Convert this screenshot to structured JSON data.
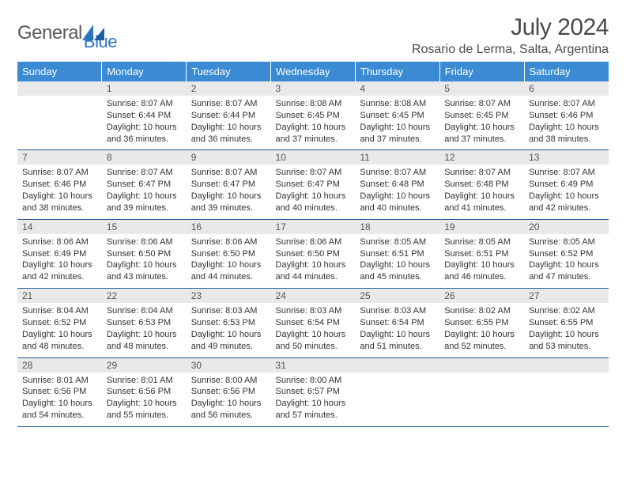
{
  "brand": {
    "part1": "General",
    "part2": "Blue"
  },
  "title": "July 2024",
  "location": "Rosario de Lerma, Salta, Argentina",
  "colors": {
    "header_bg": "#3b8bd4",
    "header_text": "#ffffff",
    "daynum_bg": "#e9e9e9",
    "rule": "#1f5c99",
    "logo_blue": "#2a75c0",
    "text": "#333333"
  },
  "weekdays": [
    "Sunday",
    "Monday",
    "Tuesday",
    "Wednesday",
    "Thursday",
    "Friday",
    "Saturday"
  ],
  "weeks": [
    {
      "nums": [
        "",
        "1",
        "2",
        "3",
        "4",
        "5",
        "6"
      ],
      "cells": [
        {
          "sunrise": "",
          "sunset": "",
          "daylight": ""
        },
        {
          "sunrise": "Sunrise: 8:07 AM",
          "sunset": "Sunset: 6:44 PM",
          "daylight": "Daylight: 10 hours and 36 minutes."
        },
        {
          "sunrise": "Sunrise: 8:07 AM",
          "sunset": "Sunset: 6:44 PM",
          "daylight": "Daylight: 10 hours and 36 minutes."
        },
        {
          "sunrise": "Sunrise: 8:08 AM",
          "sunset": "Sunset: 6:45 PM",
          "daylight": "Daylight: 10 hours and 37 minutes."
        },
        {
          "sunrise": "Sunrise: 8:08 AM",
          "sunset": "Sunset: 6:45 PM",
          "daylight": "Daylight: 10 hours and 37 minutes."
        },
        {
          "sunrise": "Sunrise: 8:07 AM",
          "sunset": "Sunset: 6:45 PM",
          "daylight": "Daylight: 10 hours and 37 minutes."
        },
        {
          "sunrise": "Sunrise: 8:07 AM",
          "sunset": "Sunset: 6:46 PM",
          "daylight": "Daylight: 10 hours and 38 minutes."
        }
      ]
    },
    {
      "nums": [
        "7",
        "8",
        "9",
        "10",
        "11",
        "12",
        "13"
      ],
      "cells": [
        {
          "sunrise": "Sunrise: 8:07 AM",
          "sunset": "Sunset: 6:46 PM",
          "daylight": "Daylight: 10 hours and 38 minutes."
        },
        {
          "sunrise": "Sunrise: 8:07 AM",
          "sunset": "Sunset: 6:47 PM",
          "daylight": "Daylight: 10 hours and 39 minutes."
        },
        {
          "sunrise": "Sunrise: 8:07 AM",
          "sunset": "Sunset: 6:47 PM",
          "daylight": "Daylight: 10 hours and 39 minutes."
        },
        {
          "sunrise": "Sunrise: 8:07 AM",
          "sunset": "Sunset: 6:47 PM",
          "daylight": "Daylight: 10 hours and 40 minutes."
        },
        {
          "sunrise": "Sunrise: 8:07 AM",
          "sunset": "Sunset: 6:48 PM",
          "daylight": "Daylight: 10 hours and 40 minutes."
        },
        {
          "sunrise": "Sunrise: 8:07 AM",
          "sunset": "Sunset: 6:48 PM",
          "daylight": "Daylight: 10 hours and 41 minutes."
        },
        {
          "sunrise": "Sunrise: 8:07 AM",
          "sunset": "Sunset: 6:49 PM",
          "daylight": "Daylight: 10 hours and 42 minutes."
        }
      ]
    },
    {
      "nums": [
        "14",
        "15",
        "16",
        "17",
        "18",
        "19",
        "20"
      ],
      "cells": [
        {
          "sunrise": "Sunrise: 8:06 AM",
          "sunset": "Sunset: 6:49 PM",
          "daylight": "Daylight: 10 hours and 42 minutes."
        },
        {
          "sunrise": "Sunrise: 8:06 AM",
          "sunset": "Sunset: 6:50 PM",
          "daylight": "Daylight: 10 hours and 43 minutes."
        },
        {
          "sunrise": "Sunrise: 8:06 AM",
          "sunset": "Sunset: 6:50 PM",
          "daylight": "Daylight: 10 hours and 44 minutes."
        },
        {
          "sunrise": "Sunrise: 8:06 AM",
          "sunset": "Sunset: 6:50 PM",
          "daylight": "Daylight: 10 hours and 44 minutes."
        },
        {
          "sunrise": "Sunrise: 8:05 AM",
          "sunset": "Sunset: 6:51 PM",
          "daylight": "Daylight: 10 hours and 45 minutes."
        },
        {
          "sunrise": "Sunrise: 8:05 AM",
          "sunset": "Sunset: 6:51 PM",
          "daylight": "Daylight: 10 hours and 46 minutes."
        },
        {
          "sunrise": "Sunrise: 8:05 AM",
          "sunset": "Sunset: 6:52 PM",
          "daylight": "Daylight: 10 hours and 47 minutes."
        }
      ]
    },
    {
      "nums": [
        "21",
        "22",
        "23",
        "24",
        "25",
        "26",
        "27"
      ],
      "cells": [
        {
          "sunrise": "Sunrise: 8:04 AM",
          "sunset": "Sunset: 6:52 PM",
          "daylight": "Daylight: 10 hours and 48 minutes."
        },
        {
          "sunrise": "Sunrise: 8:04 AM",
          "sunset": "Sunset: 6:53 PM",
          "daylight": "Daylight: 10 hours and 48 minutes."
        },
        {
          "sunrise": "Sunrise: 8:03 AM",
          "sunset": "Sunset: 6:53 PM",
          "daylight": "Daylight: 10 hours and 49 minutes."
        },
        {
          "sunrise": "Sunrise: 8:03 AM",
          "sunset": "Sunset: 6:54 PM",
          "daylight": "Daylight: 10 hours and 50 minutes."
        },
        {
          "sunrise": "Sunrise: 8:03 AM",
          "sunset": "Sunset: 6:54 PM",
          "daylight": "Daylight: 10 hours and 51 minutes."
        },
        {
          "sunrise": "Sunrise: 8:02 AM",
          "sunset": "Sunset: 6:55 PM",
          "daylight": "Daylight: 10 hours and 52 minutes."
        },
        {
          "sunrise": "Sunrise: 8:02 AM",
          "sunset": "Sunset: 6:55 PM",
          "daylight": "Daylight: 10 hours and 53 minutes."
        }
      ]
    },
    {
      "nums": [
        "28",
        "29",
        "30",
        "31",
        "",
        "",
        ""
      ],
      "cells": [
        {
          "sunrise": "Sunrise: 8:01 AM",
          "sunset": "Sunset: 6:56 PM",
          "daylight": "Daylight: 10 hours and 54 minutes."
        },
        {
          "sunrise": "Sunrise: 8:01 AM",
          "sunset": "Sunset: 6:56 PM",
          "daylight": "Daylight: 10 hours and 55 minutes."
        },
        {
          "sunrise": "Sunrise: 8:00 AM",
          "sunset": "Sunset: 6:56 PM",
          "daylight": "Daylight: 10 hours and 56 minutes."
        },
        {
          "sunrise": "Sunrise: 8:00 AM",
          "sunset": "Sunset: 6:57 PM",
          "daylight": "Daylight: 10 hours and 57 minutes."
        },
        {
          "sunrise": "",
          "sunset": "",
          "daylight": ""
        },
        {
          "sunrise": "",
          "sunset": "",
          "daylight": ""
        },
        {
          "sunrise": "",
          "sunset": "",
          "daylight": ""
        }
      ]
    }
  ]
}
